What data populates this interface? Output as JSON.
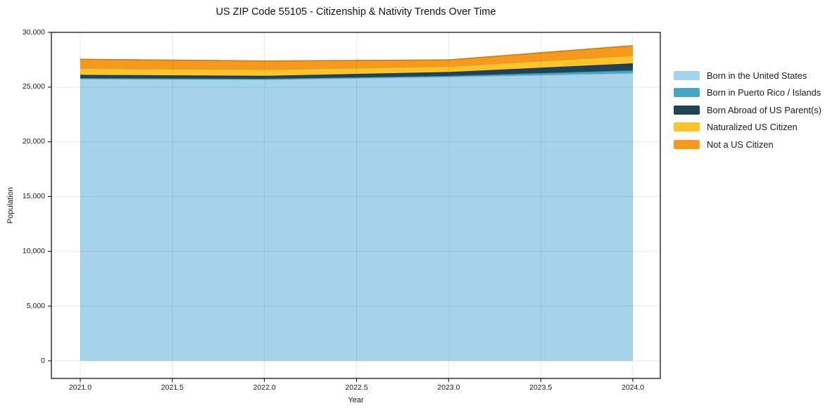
{
  "chart_data": {
    "type": "area",
    "stacked": true,
    "title": "US ZIP Code 55105 - Citizenship & Nativity Trends Over Time",
    "xlabel": "Year",
    "ylabel": "Population",
    "x": [
      2021,
      2022,
      2023,
      2024
    ],
    "series": [
      {
        "name": "Born in the United States",
        "color": "#a5d3e9",
        "values": [
          25760,
          25700,
          25950,
          26280
        ]
      },
      {
        "name": "Born in Puerto Rico / Islands",
        "color": "#45a7c6",
        "values": [
          60,
          60,
          80,
          250
        ]
      },
      {
        "name": "Born Abroad of US Parent(s)",
        "color": "#1f4357",
        "values": [
          300,
          270,
          350,
          640
        ]
      },
      {
        "name": "Naturalized US Citizen",
        "color": "#fcc32d",
        "values": [
          600,
          580,
          520,
          710
        ]
      },
      {
        "name": "Not a US Citizen",
        "color": "#f6991e",
        "values": [
          810,
          770,
          580,
          900
        ]
      }
    ],
    "totals": [
      27530,
      27380,
      27480,
      28780
    ],
    "xtick_labels": [
      "2021.0",
      "2021.5",
      "2022.0",
      "2022.5",
      "2023.0",
      "2023.5",
      "2024.0"
    ],
    "ytick_labels": [
      "0",
      "5,000",
      "10,000",
      "15,000",
      "20,000",
      "25,000",
      "30,000"
    ],
    "xlim": [
      2020.84,
      2024.15
    ],
    "ylim": [
      0,
      30000
    ],
    "grid": true,
    "legend_position": "center right"
  },
  "colors": {
    "background": "#ffffff",
    "spine": "#000000",
    "grid_rgba": "rgba(90,90,90,0.14)",
    "text": "#1a1a1a"
  }
}
